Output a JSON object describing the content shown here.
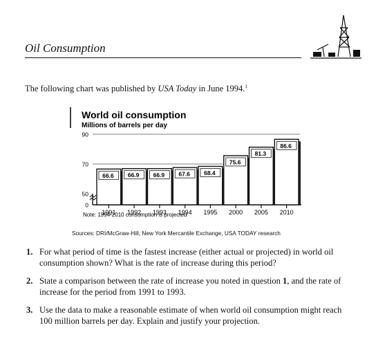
{
  "header": {
    "title": "Oil Consumption"
  },
  "intro": {
    "text_before": "The following chart was published by ",
    "source_name": "USA Today",
    "text_after": " in June 1994.",
    "footnote": "1"
  },
  "chart": {
    "title": "World oil consumption",
    "subtitle": "Millions of barrels per day",
    "note": "Note: 1994-2010 consumption is projected",
    "sources": "Sources: DRI/McGraw-Hill, New York Mercantile Exchange, USA TODAY research"
  },
  "chart_data": {
    "type": "bar",
    "categories": [
      "1991",
      "1992",
      "1993",
      "1994",
      "1995",
      "2000",
      "2005",
      "2010"
    ],
    "values": [
      66.6,
      66.9,
      66.9,
      67.6,
      68.4,
      75.6,
      81.3,
      86.6
    ],
    "value_labels": [
      "66.6",
      "66.9",
      "66.9",
      "67.6",
      "68.4",
      "75.6",
      "81.3",
      "86.6"
    ],
    "y_ticks": [
      0,
      50,
      70,
      90
    ],
    "y_tick_labels": [
      "0",
      "50",
      "70",
      "90"
    ],
    "ylim": [
      50,
      90
    ],
    "axis_break": true,
    "grid": true,
    "title": "World oil consumption",
    "ylabel": "Millions of barrels per day"
  },
  "questions": [
    {
      "number": "1.",
      "text": "For what period of time is the fastest increase (either actual or projected) in world oil consumption shown? What is the rate of increase during this period?"
    },
    {
      "number": "2.",
      "text_before": "State a comparison between the rate of increase you noted in question ",
      "bold_ref": "1",
      "text_after": ", and the rate of increase for the period from 1991 to 1993."
    },
    {
      "number": "3.",
      "text": "Use the data to make a reasonable estimate of when world oil consumption might reach 100 million barrels per day. Explain and justify your projection."
    }
  ]
}
